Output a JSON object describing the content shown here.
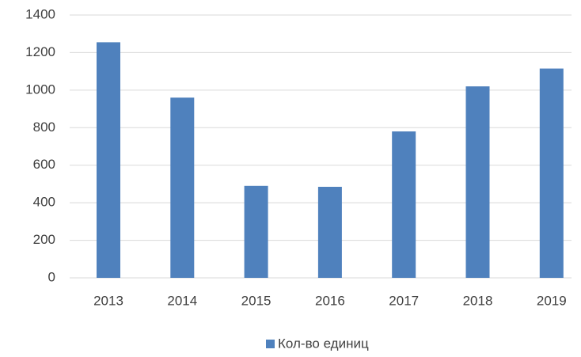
{
  "chart_data": {
    "type": "bar",
    "categories": [
      "2013",
      "2014",
      "2015",
      "2016",
      "2017",
      "2018",
      "2019"
    ],
    "series": [
      {
        "name": "Кол-во единиц",
        "color": "#4f81bd",
        "values": [
          1255,
          960,
          490,
          485,
          780,
          1020,
          1115
        ]
      }
    ],
    "ylim": [
      0,
      1400
    ],
    "yticks": [
      0,
      200,
      400,
      600,
      800,
      1000,
      1200,
      1400
    ],
    "grid": true,
    "legend": "bottom"
  }
}
